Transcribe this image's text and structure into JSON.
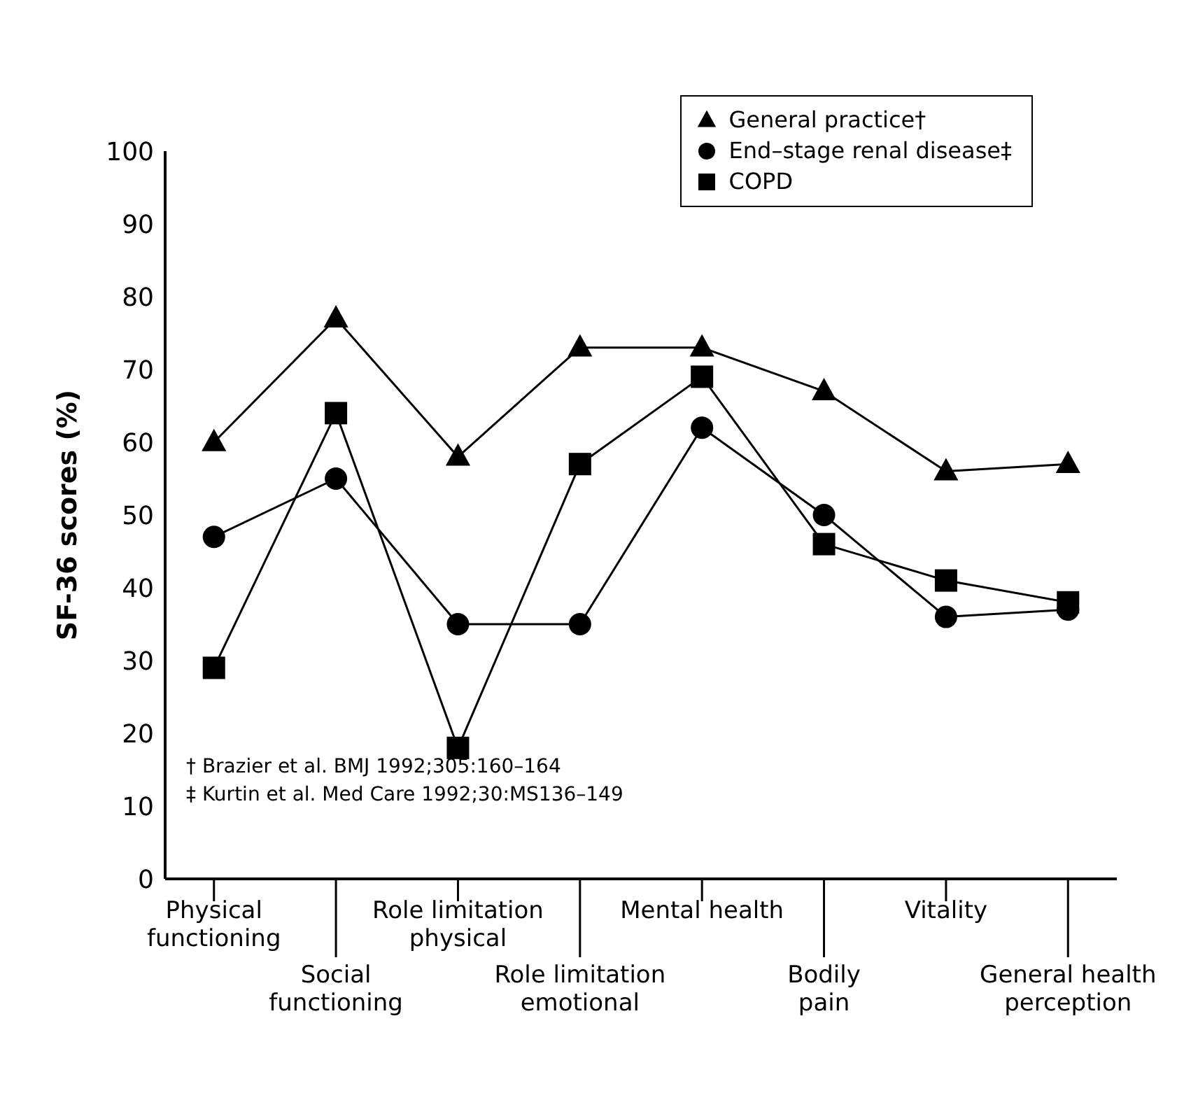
{
  "chart_data": {
    "type": "line",
    "ylabel": "SF-36 scores (%)",
    "categories": [
      "Physical functioning",
      "Social functioning",
      "Role limitation physical",
      "Role limitation emotional",
      "Mental health",
      "Bodily pain",
      "Vitality",
      "General health perception"
    ],
    "series": [
      {
        "name": "General practice†",
        "color": "#000000",
        "marker": "triangle",
        "values": [
          60,
          77,
          58,
          73,
          73,
          67,
          56,
          57
        ]
      },
      {
        "name": "End–stage renal disease‡",
        "color": "#000000",
        "marker": "circle",
        "values": [
          47,
          55,
          35,
          35,
          62,
          50,
          36,
          37
        ]
      },
      {
        "name": "COPD",
        "color": "#000000",
        "marker": "square",
        "values": [
          29,
          64,
          18,
          57,
          69,
          46,
          41,
          38
        ]
      }
    ],
    "ylim": [
      0,
      100
    ],
    "yticks": [
      0,
      10,
      20,
      30,
      40,
      50,
      60,
      70,
      80,
      90,
      100
    ],
    "grid": false,
    "legend": "top right",
    "line_style": "solid",
    "annotations": [
      "† Brazier et al. BMJ 1992;305:160–164",
      "‡ Kurtin et al. Med Care 1992;30:MS136–149"
    ]
  }
}
